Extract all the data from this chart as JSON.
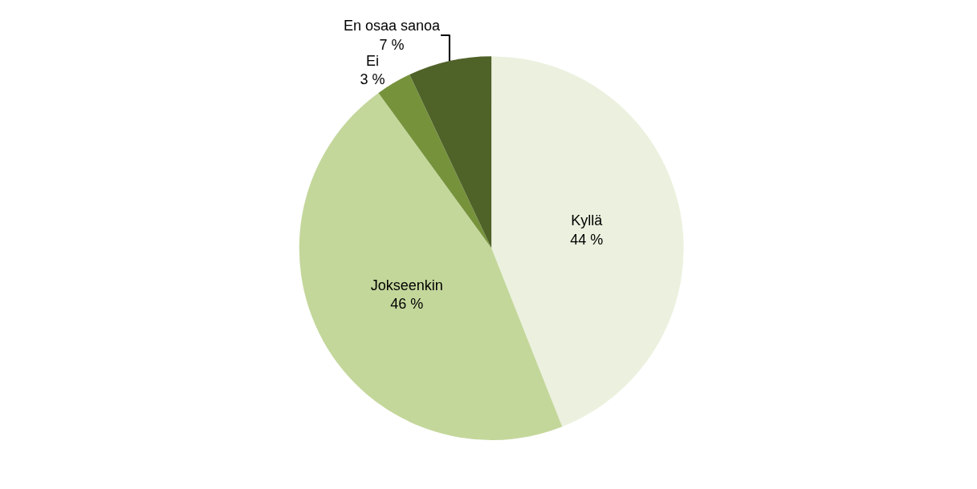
{
  "chart_data": {
    "type": "pie",
    "categories": [
      "Kyllä",
      "Jokseenkin",
      "Ei",
      "En osaa sanoa"
    ],
    "values": [
      44,
      46,
      3,
      7
    ],
    "value_labels": [
      "44 %",
      "46 %",
      "3 %",
      "7 %"
    ],
    "colors": [
      "#ebf1de",
      "#c4d79b",
      "#76933c",
      "#4f6228"
    ],
    "legend": false
  }
}
